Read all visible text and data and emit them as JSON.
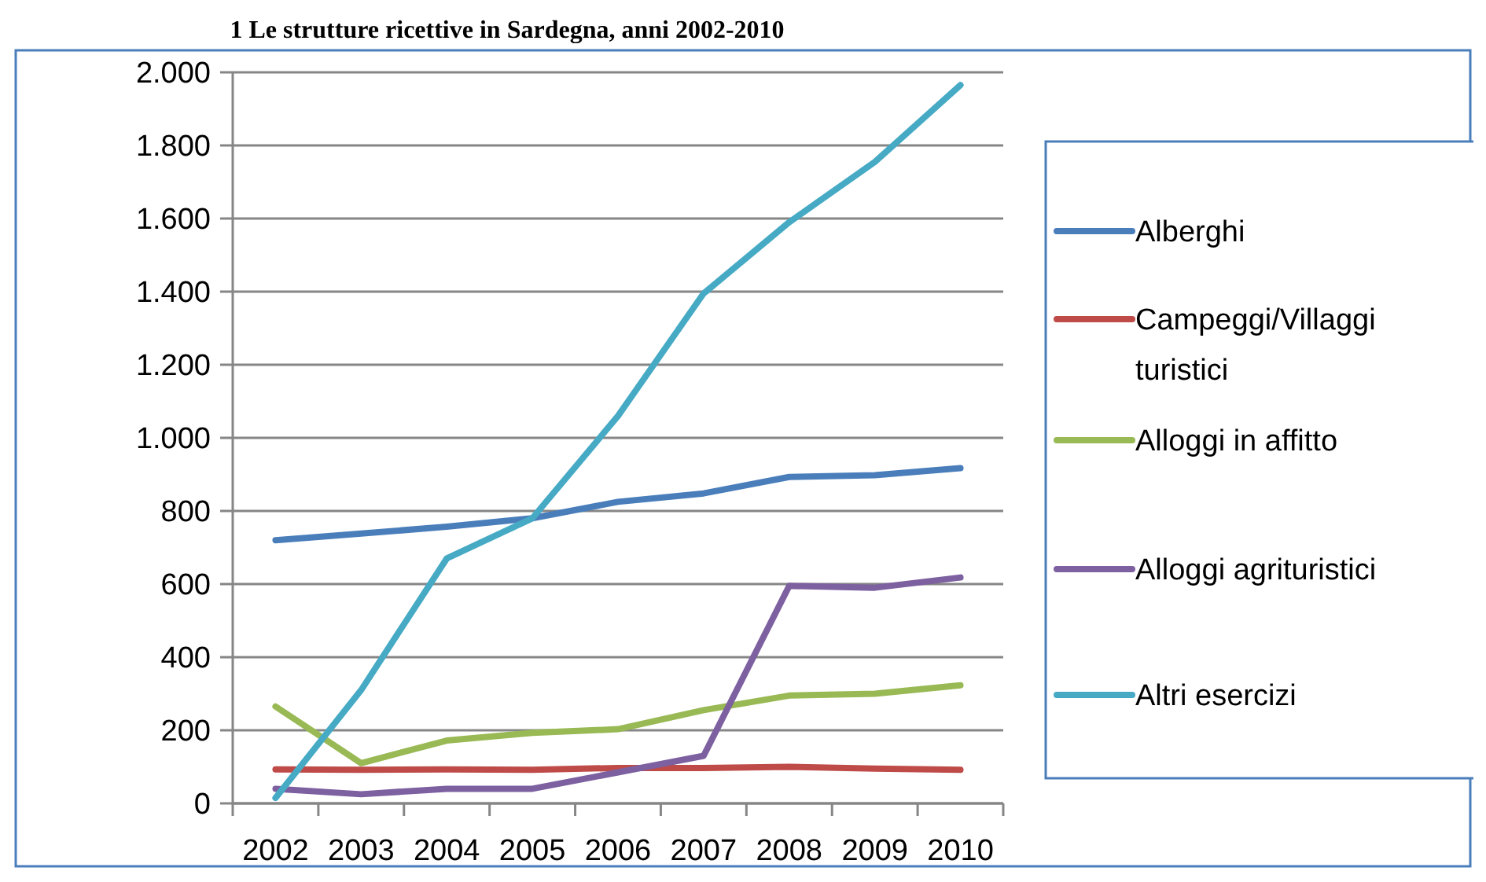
{
  "chart_data": {
    "type": "line",
    "title": "1 Le strutture ricettive in Sardegna, anni 2002-2010",
    "categories": [
      "2002",
      "2003",
      "2004",
      "2005",
      "2006",
      "2007",
      "2008",
      "2009",
      "2010"
    ],
    "series": [
      {
        "name": "Alberghi",
        "color": "#4a7ebb",
        "values": [
          720,
          738,
          757,
          780,
          825,
          848,
          893,
          898,
          917
        ]
      },
      {
        "name": "Campeggi/Villaggi turistici",
        "color": "#be4b48",
        "values": [
          93,
          92,
          93,
          92,
          97,
          97,
          100,
          95,
          92
        ]
      },
      {
        "name": "Alloggi in affitto",
        "color": "#98b954",
        "values": [
          265,
          110,
          172,
          193,
          203,
          255,
          295,
          300,
          323
        ]
      },
      {
        "name": "Alloggi agrituristici",
        "color": "#7d60a0",
        "values": [
          40,
          25,
          40,
          40,
          85,
          130,
          595,
          590,
          618
        ]
      },
      {
        "name": "Altri esercizi",
        "color": "#46aac5",
        "values": [
          15,
          310,
          670,
          780,
          1060,
          1395,
          1590,
          1755,
          1965
        ]
      }
    ],
    "ylim": [
      0,
      2000
    ],
    "yticks": [
      {
        "value": 0,
        "label": "0"
      },
      {
        "value": 200,
        "label": "200"
      },
      {
        "value": 400,
        "label": "400"
      },
      {
        "value": 600,
        "label": "600"
      },
      {
        "value": 800,
        "label": "800"
      },
      {
        "value": 1000,
        "label": "1.000"
      },
      {
        "value": 1200,
        "label": "1.200"
      },
      {
        "value": 1400,
        "label": "1.400"
      },
      {
        "value": 1600,
        "label": "1.600"
      },
      {
        "value": 1800,
        "label": "1.800"
      },
      {
        "value": 2000,
        "label": "2.000"
      }
    ],
    "grid": "y",
    "legend": "right",
    "marker": "none",
    "line_style": "solid"
  }
}
